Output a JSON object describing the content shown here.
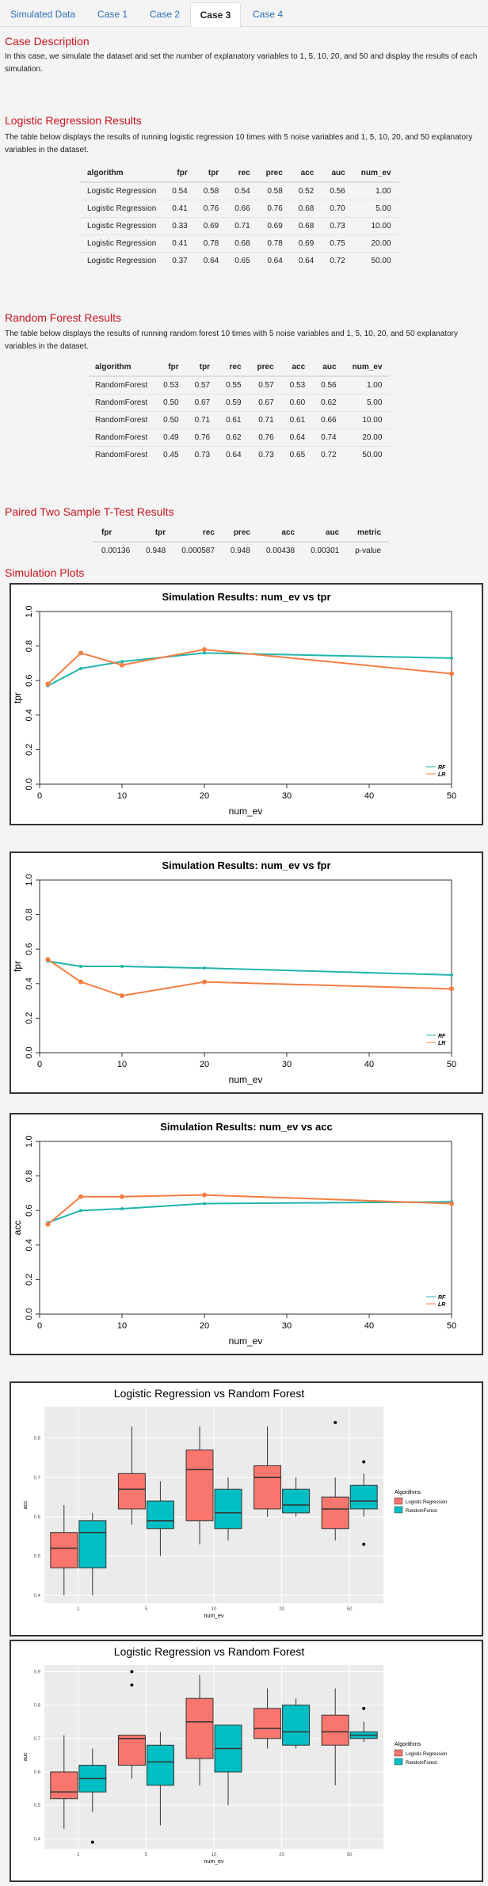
{
  "tabs": [
    "Simulated Data",
    "Case 1",
    "Case 2",
    "Case 3",
    "Case 4"
  ],
  "active_tab": "Case 3",
  "case_description": {
    "title": "Case Description",
    "text": "In this case, we simulate the dataset and set the number of explanatory variables to 1, 5, 10, 20, and 50 and display the results of each simulation."
  },
  "lr_results": {
    "title": "Logistic Regression Results",
    "text": "The table below displays the results of running logistic regression 10 times with 5 noise variables and 1, 5, 10, 20, and 50 explanatory variables in the dataset.",
    "columns": [
      "algorithm",
      "fpr",
      "tpr",
      "rec",
      "prec",
      "acc",
      "auc",
      "num_ev"
    ],
    "rows": [
      [
        "Logistic Regression",
        "0.54",
        "0.58",
        "0.54",
        "0.58",
        "0.52",
        "0.56",
        "1.00"
      ],
      [
        "Logistic Regression",
        "0.41",
        "0.76",
        "0.66",
        "0.76",
        "0.68",
        "0.70",
        "5.00"
      ],
      [
        "Logistic Regression",
        "0.33",
        "0.69",
        "0.71",
        "0.69",
        "0.68",
        "0.73",
        "10.00"
      ],
      [
        "Logistic Regression",
        "0.41",
        "0.78",
        "0.68",
        "0.78",
        "0.69",
        "0.75",
        "20.00"
      ],
      [
        "Logistic Regression",
        "0.37",
        "0.64",
        "0.65",
        "0.64",
        "0.64",
        "0.72",
        "50.00"
      ]
    ]
  },
  "rf_results": {
    "title": "Random Forest Results",
    "text": "The table below displays the results of running random forest 10 times with 5 noise variables and 1, 5, 10, 20, and 50 explanatory variables in the dataset.",
    "columns": [
      "algorithm",
      "fpr",
      "tpr",
      "rec",
      "prec",
      "acc",
      "auc",
      "num_ev"
    ],
    "rows": [
      [
        "RandomForest",
        "0.53",
        "0.57",
        "0.55",
        "0.57",
        "0.53",
        "0.56",
        "1.00"
      ],
      [
        "RandomForest",
        "0.50",
        "0.67",
        "0.59",
        "0.67",
        "0.60",
        "0.62",
        "5.00"
      ],
      [
        "RandomForest",
        "0.50",
        "0.71",
        "0.61",
        "0.71",
        "0.61",
        "0.66",
        "10.00"
      ],
      [
        "RandomForest",
        "0.49",
        "0.76",
        "0.62",
        "0.76",
        "0.64",
        "0.74",
        "20.00"
      ],
      [
        "RandomForest",
        "0.45",
        "0.73",
        "0.64",
        "0.73",
        "0.65",
        "0.72",
        "50.00"
      ]
    ]
  },
  "ttest": {
    "title": "Paired Two Sample T-Test Results",
    "columns": [
      "fpr",
      "tpr",
      "rec",
      "prec",
      "acc",
      "auc",
      "metric"
    ],
    "rows": [
      [
        "0.00136",
        "0.948",
        "0.000587",
        "0.948",
        "0.00438",
        "0.00301",
        "p-value"
      ]
    ]
  },
  "simulation_plots_title": "Simulation Plots",
  "colors": {
    "rf": "#1fb5aa",
    "lr": "#f47d43",
    "box_lr": "#f8766d",
    "box_rf": "#00bfc4"
  },
  "chart_data": [
    {
      "type": "line",
      "title": "Simulation Results: num_ev vs tpr",
      "xlabel": "num_ev",
      "ylabel": "tpr",
      "xlim": [
        0,
        50
      ],
      "ylim": [
        0.0,
        1.0
      ],
      "xticks": [
        0,
        10,
        20,
        30,
        40,
        50
      ],
      "yticks": [
        "0.0",
        "0.2",
        "0.4",
        "0.6",
        "0.8",
        "1.0"
      ],
      "x": [
        1,
        5,
        10,
        20,
        50
      ],
      "legend": "bottom-right",
      "series": [
        {
          "name": "RF",
          "values": [
            0.57,
            0.67,
            0.71,
            0.76,
            0.73
          ]
        },
        {
          "name": "LR",
          "values": [
            0.58,
            0.76,
            0.69,
            0.78,
            0.64
          ]
        }
      ]
    },
    {
      "type": "line",
      "title": "Simulation Results: num_ev vs fpr",
      "xlabel": "num_ev",
      "ylabel": "fpr",
      "xlim": [
        0,
        50
      ],
      "ylim": [
        0.0,
        1.0
      ],
      "xticks": [
        0,
        10,
        20,
        30,
        40,
        50
      ],
      "yticks": [
        "0.0",
        "0.2",
        "0.4",
        "0.6",
        "0.8",
        "1.0"
      ],
      "x": [
        1,
        5,
        10,
        20,
        50
      ],
      "legend": "bottom-right",
      "series": [
        {
          "name": "RF",
          "values": [
            0.53,
            0.5,
            0.5,
            0.49,
            0.45
          ]
        },
        {
          "name": "LR",
          "values": [
            0.54,
            0.41,
            0.33,
            0.41,
            0.37
          ]
        }
      ]
    },
    {
      "type": "line",
      "title": "Simulation Results: num_ev vs acc",
      "xlabel": "num_ev",
      "ylabel": "acc",
      "xlim": [
        0,
        50
      ],
      "ylim": [
        0.0,
        1.0
      ],
      "xticks": [
        0,
        10,
        20,
        30,
        40,
        50
      ],
      "yticks": [
        "0.0",
        "0.2",
        "0.4",
        "0.6",
        "0.8",
        "1.0"
      ],
      "x": [
        1,
        5,
        10,
        20,
        50
      ],
      "legend": "bottom-right",
      "series": [
        {
          "name": "RF",
          "values": [
            0.53,
            0.6,
            0.61,
            0.64,
            0.65
          ]
        },
        {
          "name": "LR",
          "values": [
            0.52,
            0.68,
            0.68,
            0.69,
            0.64
          ]
        }
      ]
    },
    {
      "type": "box",
      "title": "Logistic Regression vs Random Forest",
      "xlabel": "num_ev",
      "ylabel": "acc",
      "ylim": [
        0.38,
        0.88
      ],
      "yticks": [
        "0.4",
        "0.5",
        "0.6",
        "0.7",
        "0.8"
      ],
      "categories": [
        "1",
        "5",
        "10",
        "20",
        "50"
      ],
      "legend_title": "Algorithms",
      "legend": "right",
      "series": [
        {
          "name": "Logistic Regression",
          "boxes": [
            {
              "min": 0.4,
              "q1": 0.47,
              "median": 0.52,
              "q3": 0.56,
              "max": 0.63,
              "outliers": []
            },
            {
              "min": 0.58,
              "q1": 0.62,
              "median": 0.67,
              "q3": 0.71,
              "max": 0.83,
              "outliers": []
            },
            {
              "min": 0.53,
              "q1": 0.59,
              "median": 0.72,
              "q3": 0.77,
              "max": 0.83,
              "outliers": []
            },
            {
              "min": 0.6,
              "q1": 0.62,
              "median": 0.7,
              "q3": 0.73,
              "max": 0.83,
              "outliers": []
            },
            {
              "min": 0.54,
              "q1": 0.57,
              "median": 0.62,
              "q3": 0.65,
              "max": 0.7,
              "outliers": [
                0.84
              ]
            }
          ]
        },
        {
          "name": "RandomForest",
          "boxes": [
            {
              "min": 0.4,
              "q1": 0.47,
              "median": 0.56,
              "q3": 0.59,
              "max": 0.61,
              "outliers": []
            },
            {
              "min": 0.5,
              "q1": 0.57,
              "median": 0.59,
              "q3": 0.64,
              "max": 0.69,
              "outliers": []
            },
            {
              "min": 0.54,
              "q1": 0.57,
              "median": 0.61,
              "q3": 0.67,
              "max": 0.7,
              "outliers": []
            },
            {
              "min": 0.6,
              "q1": 0.61,
              "median": 0.63,
              "q3": 0.67,
              "max": 0.7,
              "outliers": []
            },
            {
              "min": 0.6,
              "q1": 0.62,
              "median": 0.64,
              "q3": 0.68,
              "max": 0.71,
              "outliers": [
                0.74,
                0.53
              ]
            }
          ]
        }
      ]
    },
    {
      "type": "box",
      "title": "Logistic Regression vs Random Forest",
      "xlabel": "num_ev",
      "ylabel": "auc",
      "ylim": [
        0.37,
        0.92
      ],
      "yticks": [
        "0.4",
        "0.5",
        "0.6",
        "0.7",
        "0.8",
        "0.9"
      ],
      "categories": [
        "1",
        "5",
        "10",
        "20",
        "50"
      ],
      "legend_title": "Algorithms",
      "legend": "right",
      "series": [
        {
          "name": "Logistic Regression",
          "boxes": [
            {
              "min": 0.43,
              "q1": 0.52,
              "median": 0.54,
              "q3": 0.6,
              "max": 0.71,
              "outliers": []
            },
            {
              "min": 0.58,
              "q1": 0.62,
              "median": 0.7,
              "q3": 0.71,
              "max": 0.71,
              "outliers": [
                0.9,
                0.86
              ]
            },
            {
              "min": 0.56,
              "q1": 0.64,
              "median": 0.75,
              "q3": 0.82,
              "max": 0.89,
              "outliers": []
            },
            {
              "min": 0.67,
              "q1": 0.7,
              "median": 0.73,
              "q3": 0.79,
              "max": 0.85,
              "outliers": []
            },
            {
              "min": 0.56,
              "q1": 0.68,
              "median": 0.72,
              "q3": 0.77,
              "max": 0.85,
              "outliers": []
            }
          ]
        },
        {
          "name": "RandomForest",
          "boxes": [
            {
              "min": 0.48,
              "q1": 0.54,
              "median": 0.58,
              "q3": 0.62,
              "max": 0.67,
              "outliers": [
                0.39
              ]
            },
            {
              "min": 0.44,
              "q1": 0.56,
              "median": 0.63,
              "q3": 0.68,
              "max": 0.72,
              "outliers": []
            },
            {
              "min": 0.5,
              "q1": 0.6,
              "median": 0.67,
              "q3": 0.74,
              "max": 0.74,
              "outliers": []
            },
            {
              "min": 0.67,
              "q1": 0.68,
              "median": 0.72,
              "q3": 0.8,
              "max": 0.82,
              "outliers": []
            },
            {
              "min": 0.69,
              "q1": 0.7,
              "median": 0.71,
              "q3": 0.72,
              "max": 0.75,
              "outliers": [
                0.79
              ]
            }
          ]
        }
      ]
    }
  ]
}
